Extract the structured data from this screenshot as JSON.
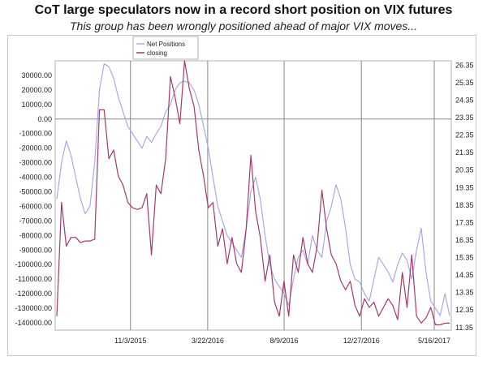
{
  "title": "CoT large speculators now in a record short position on VIX futures",
  "subtitle": "This group has been wrongly positioned ahead of major VIX moves...",
  "colors": {
    "net_positions": "#a8a8f0",
    "closing": "#a8386a",
    "grid": "#888888",
    "zero_line": "#888888"
  },
  "chart_data": {
    "type": "line",
    "grid": true,
    "legend_position": "top-left",
    "x_ticks": [
      "11/3/2015",
      "3/22/2016",
      "8/9/2016",
      "12/27/2016",
      "5/16/2017"
    ],
    "y_left": {
      "ylim": [
        -145000,
        40000
      ],
      "ticks": [
        "30000.00",
        "20000.00",
        "10000.00",
        "0.00",
        "-10000.00",
        "-20000.00",
        "-30000.00",
        "-40000.00",
        "-50000.00",
        "-60000.00",
        "-70000.00",
        "-80000.00",
        "-90000.00",
        "-100000.00",
        "-110000.00",
        "-120000.00",
        "-130000.00",
        "-140000.00"
      ]
    },
    "y_right": {
      "ylim": [
        11.2,
        26.6
      ],
      "ticks": [
        "26.35",
        "25.35",
        "24.35",
        "23.35",
        "22.35",
        "21.35",
        "20.35",
        "19.35",
        "18.35",
        "17.35",
        "16.35",
        "15.35",
        "14.35",
        "13.35",
        "12.35",
        "11.35"
      ]
    },
    "series": [
      {
        "name": "Net Positions",
        "axis": "left",
        "values": [
          -55000,
          -30000,
          -15000,
          -25000,
          -40000,
          -55000,
          -65000,
          -60000,
          -30000,
          20000,
          38000,
          36000,
          28000,
          15000,
          5000,
          -5000,
          -10000,
          -15000,
          -20000,
          -12000,
          -16000,
          -10000,
          -5000,
          5000,
          10000,
          20000,
          25000,
          26000,
          25000,
          20000,
          10000,
          -5000,
          -20000,
          -40000,
          -60000,
          -70000,
          -80000,
          -85000,
          -90000,
          -95000,
          -75000,
          -50000,
          -40000,
          -55000,
          -80000,
          -100000,
          -110000,
          -115000,
          -120000,
          -128000,
          -110000,
          -95000,
          -90000,
          -100000,
          -80000,
          -90000,
          -95000,
          -70000,
          -60000,
          -45000,
          -55000,
          -75000,
          -100000,
          -110000,
          -112000,
          -120000,
          -125000,
          -110000,
          -95000,
          -100000,
          -105000,
          -112000,
          -100000,
          -92000,
          -97000,
          -110000,
          -90000,
          -75000,
          -105000,
          -125000,
          -130000,
          -135000,
          -120000,
          -135000
        ]
      },
      {
        "name": "closing",
        "axis": "right",
        "values": [
          12.0,
          18.5,
          16.0,
          16.5,
          16.5,
          16.2,
          16.3,
          16.3,
          16.4,
          23.8,
          23.8,
          21.0,
          21.5,
          20.0,
          19.5,
          18.5,
          18.2,
          18.1,
          18.2,
          19.0,
          15.5,
          19.5,
          19.0,
          21.0,
          25.7,
          24.5,
          23.0,
          26.6,
          25.0,
          24.0,
          21.5,
          20.0,
          18.2,
          18.5,
          16.0,
          17.0,
          15.0,
          16.5,
          15.0,
          14.5,
          17.0,
          21.2,
          18.0,
          16.5,
          14.0,
          15.5,
          12.8,
          12.0,
          14.0,
          12.0,
          15.5,
          14.5,
          16.5,
          15.0,
          14.5,
          16.0,
          19.2,
          17.0,
          15.5,
          15.0,
          14.0,
          13.5,
          14.0,
          12.6,
          12.0,
          13.0,
          12.5,
          12.8,
          12.0,
          12.5,
          13.0,
          12.6,
          11.8,
          14.5,
          12.5,
          15.5,
          12.0,
          11.6,
          11.9,
          12.5,
          11.5,
          11.5,
          11.6,
          11.6
        ]
      }
    ]
  }
}
